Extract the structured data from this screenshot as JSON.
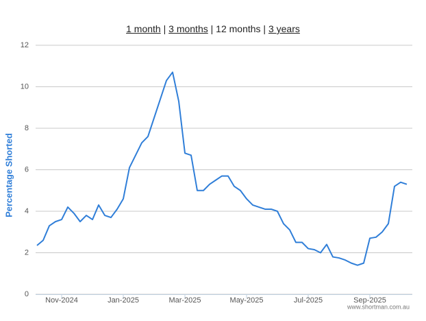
{
  "nav": {
    "links": [
      "1 month",
      "3 months",
      "12 months",
      "3 years"
    ],
    "active": 2,
    "separator": "|"
  },
  "watermark": "www.shortman.com.au",
  "chart_data": {
    "type": "line",
    "ylabel": "Percentage Shorted",
    "categories": [
      null,
      null,
      null,
      null,
      "Nov-2024",
      null,
      null,
      null,
      null,
      null,
      null,
      null,
      null,
      null,
      "Jan-2025",
      null,
      null,
      null,
      null,
      null,
      null,
      null,
      null,
      null,
      "Mar-2025",
      null,
      null,
      null,
      null,
      null,
      null,
      null,
      null,
      null,
      "May-2025",
      null,
      null,
      null,
      null,
      null,
      null,
      null,
      null,
      null,
      "Jul-2025",
      null,
      null,
      null,
      null,
      null,
      null,
      null,
      null,
      null,
      "Sep-2025",
      null,
      null,
      null,
      null,
      null,
      null
    ],
    "series": [
      {
        "color": "#2f7ed8",
        "values": [
          2.35,
          2.6,
          3.3,
          3.5,
          3.6,
          4.2,
          3.9,
          3.5,
          3.8,
          3.6,
          4.3,
          3.8,
          3.7,
          4.1,
          4.6,
          6.1,
          6.7,
          7.3,
          7.6,
          8.5,
          9.4,
          10.3,
          10.7,
          9.3,
          6.8,
          6.7,
          5.0,
          5.0,
          5.3,
          5.5,
          5.7,
          5.7,
          5.2,
          5.0,
          4.6,
          4.3,
          4.2,
          4.1,
          4.1,
          4.0,
          3.4,
          3.1,
          2.5,
          2.5,
          2.2,
          2.15,
          2.0,
          2.4,
          1.8,
          1.75,
          1.65,
          1.5,
          1.4,
          1.5,
          2.7,
          2.75,
          3.0,
          3.4,
          5.2,
          5.4,
          5.3
        ]
      }
    ],
    "ylim": [
      0,
      12
    ],
    "yticks": [
      0,
      2,
      4,
      6,
      8,
      10,
      12
    ],
    "grid": true
  }
}
